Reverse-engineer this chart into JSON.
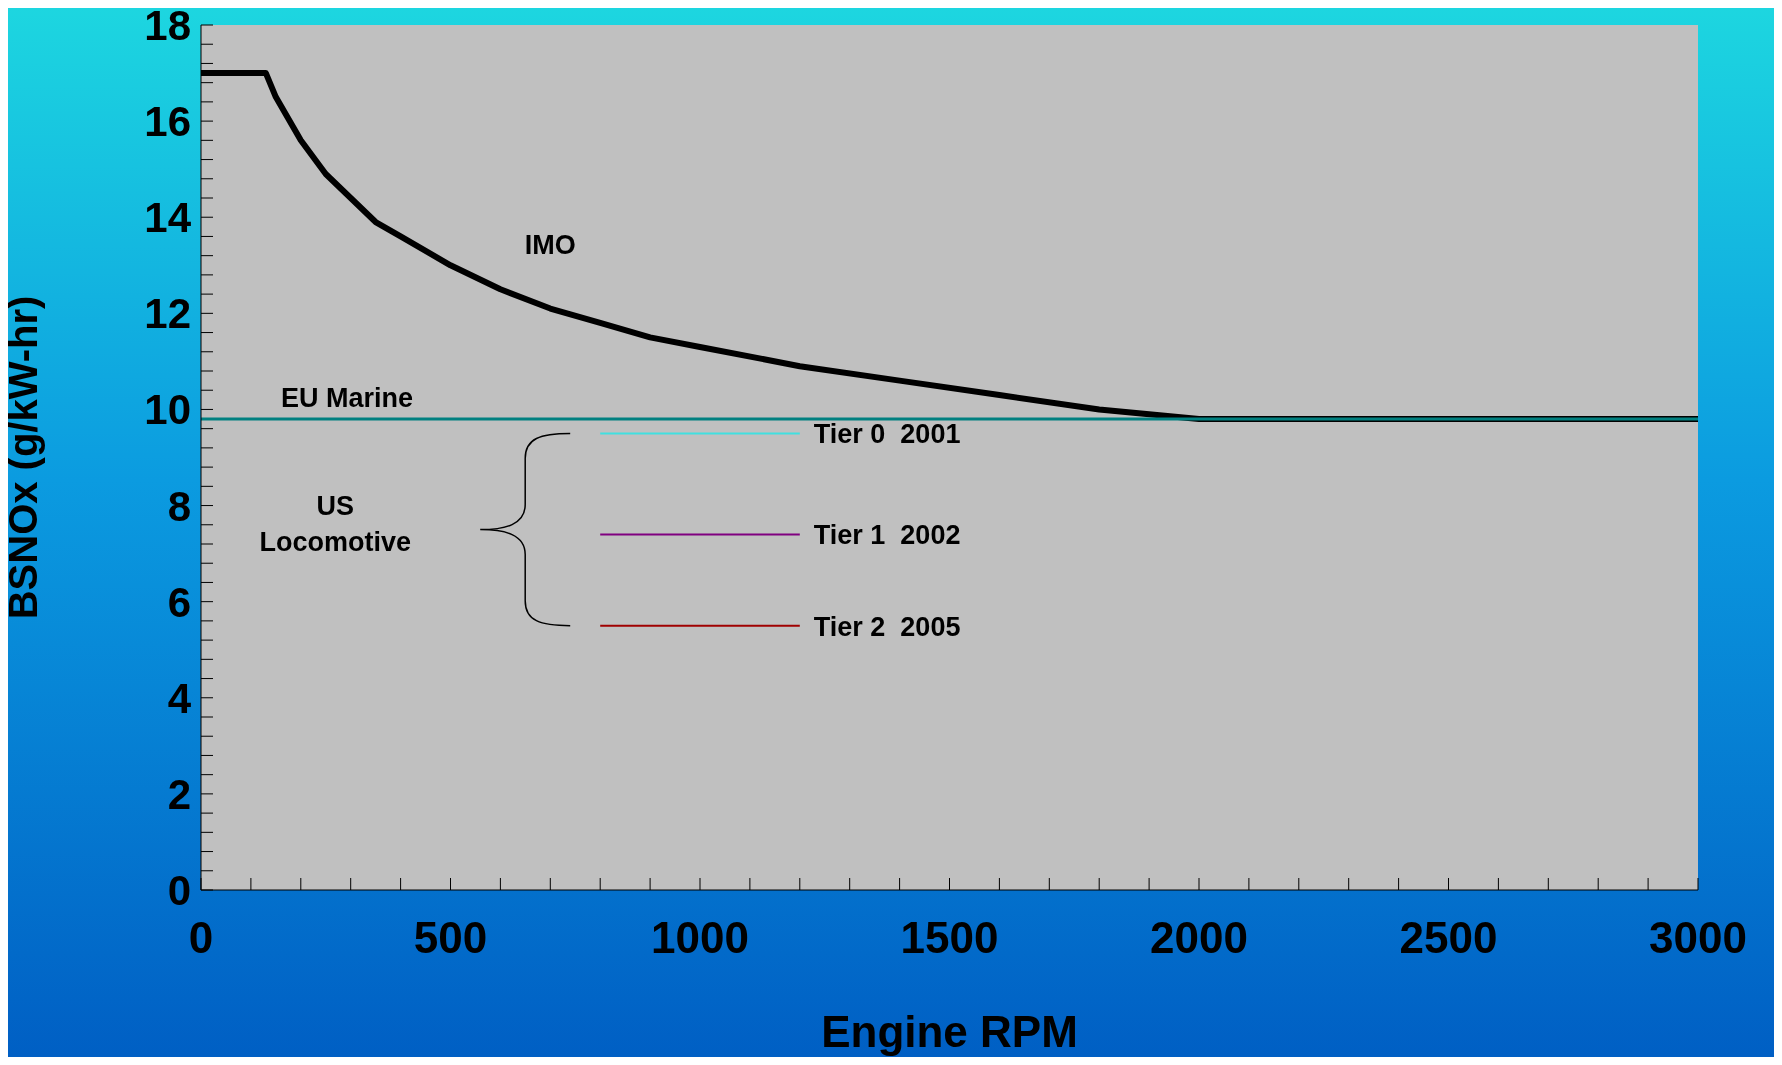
{
  "chart_data": {
    "type": "line",
    "xlabel": "Engine RPM",
    "ylabel": "BSNOx (g/kW-hr)",
    "xlim": [
      0,
      3000
    ],
    "ylim": [
      0,
      18
    ],
    "xticks": [
      0,
      {
        "value": 100,
        "label": null
      },
      {
        "value": 200,
        "label": null
      },
      {
        "value": 300,
        "label": null
      },
      {
        "value": 400,
        "label": null
      },
      500,
      {
        "value": 600,
        "label": null
      },
      {
        "value": 700,
        "label": null
      },
      {
        "value": 800,
        "label": null
      },
      {
        "value": 900,
        "label": null
      },
      1000,
      {
        "value": 1100,
        "label": null
      },
      {
        "value": 1200,
        "label": null
      },
      {
        "value": 1300,
        "label": null
      },
      {
        "value": 1400,
        "label": null
      },
      1500,
      {
        "value": 1600,
        "label": null
      },
      {
        "value": 1700,
        "label": null
      },
      {
        "value": 1800,
        "label": null
      },
      {
        "value": 1900,
        "label": null
      },
      2000,
      {
        "value": 2100,
        "label": null
      },
      {
        "value": 2200,
        "label": null
      },
      {
        "value": 2300,
        "label": null
      },
      {
        "value": 2400,
        "label": null
      },
      2500,
      {
        "value": 2600,
        "label": null
      },
      {
        "value": 2700,
        "label": null
      },
      {
        "value": 2800,
        "label": null
      },
      {
        "value": 2900,
        "label": null
      },
      3000
    ],
    "yticks": [
      0,
      {
        "value": 0.4,
        "label": null
      },
      {
        "value": 0.8,
        "label": null
      },
      {
        "value": 1.2,
        "label": null
      },
      {
        "value": 1.6,
        "label": null
      },
      2,
      {
        "value": 2.4,
        "label": null
      },
      {
        "value": 2.8,
        "label": null
      },
      {
        "value": 3.2,
        "label": null
      },
      {
        "value": 3.6,
        "label": null
      },
      4,
      {
        "value": 4.4,
        "label": null
      },
      {
        "value": 4.8,
        "label": null
      },
      {
        "value": 5.2,
        "label": null
      },
      {
        "value": 5.6,
        "label": null
      },
      6,
      {
        "value": 6.4,
        "label": null
      },
      {
        "value": 6.8,
        "label": null
      },
      {
        "value": 7.2,
        "label": null
      },
      {
        "value": 7.6,
        "label": null
      },
      8,
      {
        "value": 8.4,
        "label": null
      },
      {
        "value": 8.8,
        "label": null
      },
      {
        "value": 9.2,
        "label": null
      },
      {
        "value": 9.6,
        "label": null
      },
      10,
      {
        "value": 10.4,
        "label": null
      },
      {
        "value": 10.8,
        "label": null
      },
      {
        "value": 11.2,
        "label": null
      },
      {
        "value": 11.6,
        "label": null
      },
      12,
      {
        "value": 12.4,
        "label": null
      },
      {
        "value": 12.8,
        "label": null
      },
      {
        "value": 13.2,
        "label": null
      },
      {
        "value": 13.6,
        "label": null
      },
      14,
      {
        "value": 14.4,
        "label": null
      },
      {
        "value": 14.8,
        "label": null
      },
      {
        "value": 15.2,
        "label": null
      },
      {
        "value": 15.6,
        "label": null
      },
      16,
      {
        "value": 16.4,
        "label": null
      },
      {
        "value": 16.8,
        "label": null
      },
      {
        "value": 17.2,
        "label": null
      },
      {
        "value": 17.6,
        "label": null
      },
      18
    ],
    "grid": false,
    "legend": false,
    "marker": "none",
    "line_style": "solid",
    "annotations": [
      "US Locomotive"
    ],
    "series": [
      {
        "name": "IMO",
        "color": "#000000",
        "x": [
          0,
          130,
          150,
          200,
          250,
          300,
          350,
          400,
          500,
          600,
          700,
          800,
          900,
          1000,
          1200,
          1400,
          1600,
          1800,
          2000,
          3000
        ],
        "values": [
          17,
          17,
          16.5,
          15.6,
          14.9,
          14.4,
          13.9,
          13.6,
          13.0,
          12.5,
          12.1,
          11.8,
          11.5,
          11.3,
          10.9,
          10.6,
          10.3,
          10.0,
          9.8,
          9.8
        ]
      },
      {
        "name": "EU Marine",
        "color": "#008080",
        "x": [
          0,
          3000
        ],
        "values": [
          9.8,
          9.8
        ]
      },
      {
        "name": "Tier 0  2001",
        "color": "#40e0e0",
        "x": [
          800,
          1200
        ],
        "values": [
          9.5,
          9.5
        ]
      },
      {
        "name": "Tier 1  2002",
        "color": "#800080",
        "x": [
          800,
          1200
        ],
        "values": [
          7.4,
          7.4
        ]
      },
      {
        "name": "Tier 2  2005",
        "color": "#a00000",
        "x": [
          800,
          1200
        ],
        "values": [
          5.5,
          5.5
        ]
      }
    ]
  }
}
